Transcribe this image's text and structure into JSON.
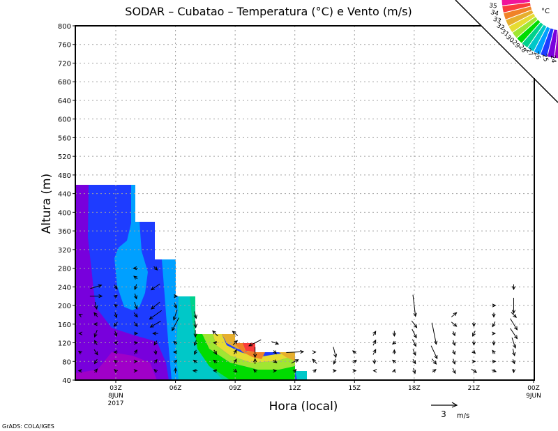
{
  "chart_data": {
    "type": "contour+vector",
    "title": "SODAR – Cubatao – Temperatura (°C) e Vento (m/s)",
    "xlabel": "Hora (local)",
    "ylabel": "Altura (m)",
    "xlim_hours": [
      0.97,
      24
    ],
    "ylim": [
      40,
      800
    ],
    "yticks": [
      "40",
      "80",
      "120",
      "160",
      "200",
      "240",
      "280",
      "320",
      "360",
      "400",
      "440",
      "480",
      "520",
      "560",
      "600",
      "640",
      "680",
      "720",
      "760",
      "800"
    ],
    "xticks": [
      {
        "hour": 3,
        "label": "03Z",
        "sub1": "8JUN",
        "sub2": "2017"
      },
      {
        "hour": 6,
        "label": "06Z"
      },
      {
        "hour": 9,
        "label": "09Z"
      },
      {
        "hour": 12,
        "label": "12Z"
      },
      {
        "hour": 15,
        "label": "15Z"
      },
      {
        "hour": 18,
        "label": "18Z"
      },
      {
        "hour": 21,
        "label": "21Z"
      },
      {
        "hour": 24,
        "label": "00Z",
        "sub1": "9JUN"
      }
    ],
    "grid": true,
    "colorbar": {
      "unit": "°C",
      "labels": [
        "35",
        "34",
        "33",
        "32",
        "31",
        "30",
        "29",
        "28",
        "27",
        "26",
        "25",
        "24"
      ],
      "colors": [
        "#f0149b",
        "#fa3c3c",
        "#f08228",
        "#e6af2d",
        "#e6dc32",
        "#a0e632",
        "#00dc00",
        "#00d28c",
        "#00c8c8",
        "#00a0ff",
        "#1e3cff",
        "#7800dc",
        "#a000c8"
      ],
      "placement": "top-right"
    },
    "reference_vector": {
      "speed": 3,
      "value_label": "3",
      "unit_label": "m/s"
    },
    "wind_columns": "[hour, height_m, u_mps, v_mps]",
    "wind": [
      [
        1.2,
        60,
        -0.3,
        0
      ],
      [
        1.2,
        100,
        -0.3,
        0.2
      ],
      [
        1.2,
        140,
        -0.2,
        0
      ],
      [
        1.2,
        180,
        -0.2,
        0.1
      ],
      [
        2,
        60,
        0.3,
        0.4
      ],
      [
        2,
        80,
        -0.3,
        -0.5
      ],
      [
        2,
        100,
        0.4,
        -0.6
      ],
      [
        2,
        120,
        -0.3,
        0.5
      ],
      [
        2,
        140,
        -0.3,
        -0.8
      ],
      [
        2,
        160,
        -0.4,
        0
      ],
      [
        2,
        180,
        -0.4,
        0.5
      ],
      [
        2,
        200,
        0.2,
        -0.8
      ],
      [
        2,
        220,
        1.4,
        0
      ],
      [
        2,
        240,
        1.3,
        0.4
      ],
      [
        3,
        60,
        -0.3,
        0.3
      ],
      [
        3,
        80,
        -0.3,
        0.3
      ],
      [
        3,
        100,
        -0.4,
        0
      ],
      [
        3,
        120,
        -0.3,
        0
      ],
      [
        3,
        140,
        0.2,
        -0.6
      ],
      [
        3,
        160,
        -0.4,
        -0.5
      ],
      [
        3,
        180,
        0.2,
        -0.6
      ],
      [
        3,
        200,
        -0.3,
        0.2
      ],
      [
        3,
        220,
        0.3,
        0.2
      ],
      [
        3,
        240,
        0.3,
        -0.5
      ],
      [
        4,
        60,
        0.3,
        0
      ],
      [
        4,
        80,
        0.3,
        0
      ],
      [
        4,
        100,
        0.3,
        0.5
      ],
      [
        4,
        120,
        0.4,
        0
      ],
      [
        4,
        140,
        0.4,
        0
      ],
      [
        4,
        160,
        0.4,
        -0.5
      ],
      [
        4,
        180,
        0.4,
        -0.5
      ],
      [
        4,
        200,
        0.3,
        -0.8
      ],
      [
        4,
        220,
        0.2,
        -0.6
      ],
      [
        4,
        240,
        -0.2,
        -0.6
      ],
      [
        4,
        260,
        -0.4,
        0.3
      ],
      [
        4,
        280,
        -0.5,
        0
      ],
      [
        5,
        60,
        -0.3,
        0.3
      ],
      [
        5,
        80,
        0.3,
        0.4
      ],
      [
        5,
        100,
        0.1,
        -0.5
      ],
      [
        5,
        120,
        -0.3,
        -0.5
      ],
      [
        5,
        140,
        -0.6,
        0
      ],
      [
        5,
        160,
        -1.2,
        -0.7
      ],
      [
        5,
        180,
        -1.4,
        -1
      ],
      [
        5,
        200,
        -1,
        -0.8
      ],
      [
        5,
        240,
        -1,
        -0.7
      ],
      [
        5,
        280,
        0.4,
        -0.4
      ],
      [
        6,
        60,
        0,
        0.6
      ],
      [
        6,
        80,
        0.3,
        0.3
      ],
      [
        6,
        100,
        -0.4,
        0
      ],
      [
        6,
        120,
        -0.4,
        0.3
      ],
      [
        6,
        160,
        -0.8,
        -1.5
      ],
      [
        6,
        180,
        -0.4,
        -1.2
      ],
      [
        6,
        200,
        0.2,
        -0.6
      ],
      [
        6,
        220,
        0.4,
        0
      ],
      [
        7,
        60,
        -0.5,
        0
      ],
      [
        7,
        80,
        -0.4,
        0.3
      ],
      [
        7,
        100,
        -0.2,
        -0.5
      ],
      [
        7,
        120,
        -0.2,
        -0.6
      ],
      [
        7,
        140,
        0,
        -0.8
      ],
      [
        7,
        160,
        0.1,
        -0.8
      ],
      [
        7,
        180,
        0.2,
        -0.8
      ],
      [
        8,
        60,
        -0.4,
        0
      ],
      [
        8,
        80,
        -0.4,
        0.3
      ],
      [
        8,
        100,
        0.3,
        -0.5
      ],
      [
        8,
        120,
        -0.4,
        0
      ],
      [
        8,
        140,
        -0.6,
        0.6
      ],
      [
        9,
        60,
        0.4,
        -0.3
      ],
      [
        9,
        80,
        0.3,
        0.5
      ],
      [
        9,
        100,
        0.3,
        0.5
      ],
      [
        9,
        120,
        0.5,
        0.5
      ],
      [
        9,
        140,
        -0.6,
        0.5
      ],
      [
        10,
        60,
        -0.3,
        0.3
      ],
      [
        10,
        80,
        0,
        0.6
      ],
      [
        10,
        100,
        0,
        -1.2
      ],
      [
        10,
        120,
        -1.4,
        -0.7
      ],
      [
        11,
        60,
        0.3,
        0
      ],
      [
        11,
        80,
        0.4,
        -0.3
      ],
      [
        11,
        100,
        0.3,
        -0.4
      ],
      [
        11,
        120,
        0.8,
        -0.3
      ],
      [
        12,
        60,
        0.3,
        0.3
      ],
      [
        12,
        80,
        0.8,
        0.4
      ],
      [
        12,
        100,
        2,
        0.1
      ],
      [
        13,
        60,
        0.3,
        0.3
      ],
      [
        13,
        80,
        -0.5,
        0.5
      ],
      [
        13,
        100,
        0.2,
        0
      ],
      [
        14,
        60,
        0.3,
        0
      ],
      [
        14,
        80,
        -0.2,
        -0.6
      ],
      [
        14,
        100,
        0.3,
        -1.2
      ],
      [
        15,
        60,
        0.3,
        0
      ],
      [
        15,
        80,
        0.4,
        0.3
      ],
      [
        15,
        100,
        -0.4,
        0.3
      ],
      [
        16,
        60,
        -0.2,
        0
      ],
      [
        16,
        80,
        0,
        -0.5
      ],
      [
        16,
        100,
        0.3,
        0.6
      ],
      [
        16,
        120,
        0.3,
        0.6
      ],
      [
        16,
        140,
        0.3,
        0.5
      ],
      [
        17,
        60,
        0.1,
        0.3
      ],
      [
        17,
        80,
        -0.4,
        0.3
      ],
      [
        17,
        100,
        0,
        0.5
      ],
      [
        17,
        120,
        -0.4,
        -0.3
      ],
      [
        17,
        140,
        0,
        -0.6
      ],
      [
        18,
        60,
        0.2,
        -0.6
      ],
      [
        18,
        80,
        0.3,
        -0.5
      ],
      [
        18,
        100,
        0.3,
        -0.7
      ],
      [
        18,
        120,
        0.4,
        -0.8
      ],
      [
        18,
        140,
        0.5,
        -1
      ],
      [
        18,
        160,
        0.6,
        -0.8
      ],
      [
        18,
        200,
        0.3,
        -2.5
      ],
      [
        19,
        60,
        0.4,
        0.3
      ],
      [
        19,
        80,
        0.5,
        -0.6
      ],
      [
        19,
        100,
        0.7,
        -1.5
      ],
      [
        19,
        140,
        0.5,
        -2.5
      ],
      [
        20,
        60,
        0.3,
        -0.6
      ],
      [
        20,
        80,
        0.2,
        -0.6
      ],
      [
        20,
        100,
        0.2,
        -0.5
      ],
      [
        20,
        120,
        0.2,
        -0.6
      ],
      [
        20,
        140,
        0.2,
        -0.5
      ],
      [
        20,
        160,
        0.6,
        -0.5
      ],
      [
        20,
        180,
        0.6,
        0.5
      ],
      [
        21,
        60,
        0.6,
        -0.4
      ],
      [
        21,
        80,
        0.3,
        0
      ],
      [
        21,
        100,
        0.3,
        -0.3
      ],
      [
        21,
        120,
        0,
        -0.5
      ],
      [
        21,
        140,
        -0.3,
        -0.6
      ],
      [
        21,
        160,
        0,
        -0.5
      ],
      [
        22,
        60,
        0.5,
        -0.2
      ],
      [
        22,
        80,
        0.4,
        0
      ],
      [
        22,
        100,
        -0.3,
        0.4
      ],
      [
        22,
        120,
        0,
        -0.5
      ],
      [
        22,
        140,
        0.3,
        0
      ],
      [
        22,
        160,
        -0.3,
        -0.6
      ],
      [
        22,
        180,
        0,
        -0.5
      ],
      [
        22,
        200,
        0.4,
        0
      ],
      [
        23,
        60,
        0,
        -0.4
      ],
      [
        23,
        80,
        0.2,
        -0.5
      ],
      [
        23,
        100,
        0.2,
        -0.8
      ],
      [
        23,
        120,
        0.4,
        -1.2
      ],
      [
        23,
        140,
        0.8,
        -1.2
      ],
      [
        23,
        160,
        0.8,
        -1.3
      ],
      [
        23,
        200,
        0,
        -1.8
      ],
      [
        23,
        240,
        0,
        -0.6
      ],
      [
        23,
        180,
        0.6,
        -0.6
      ]
    ]
  },
  "footer": {
    "credit": "GrADS: COLA/IGES"
  }
}
